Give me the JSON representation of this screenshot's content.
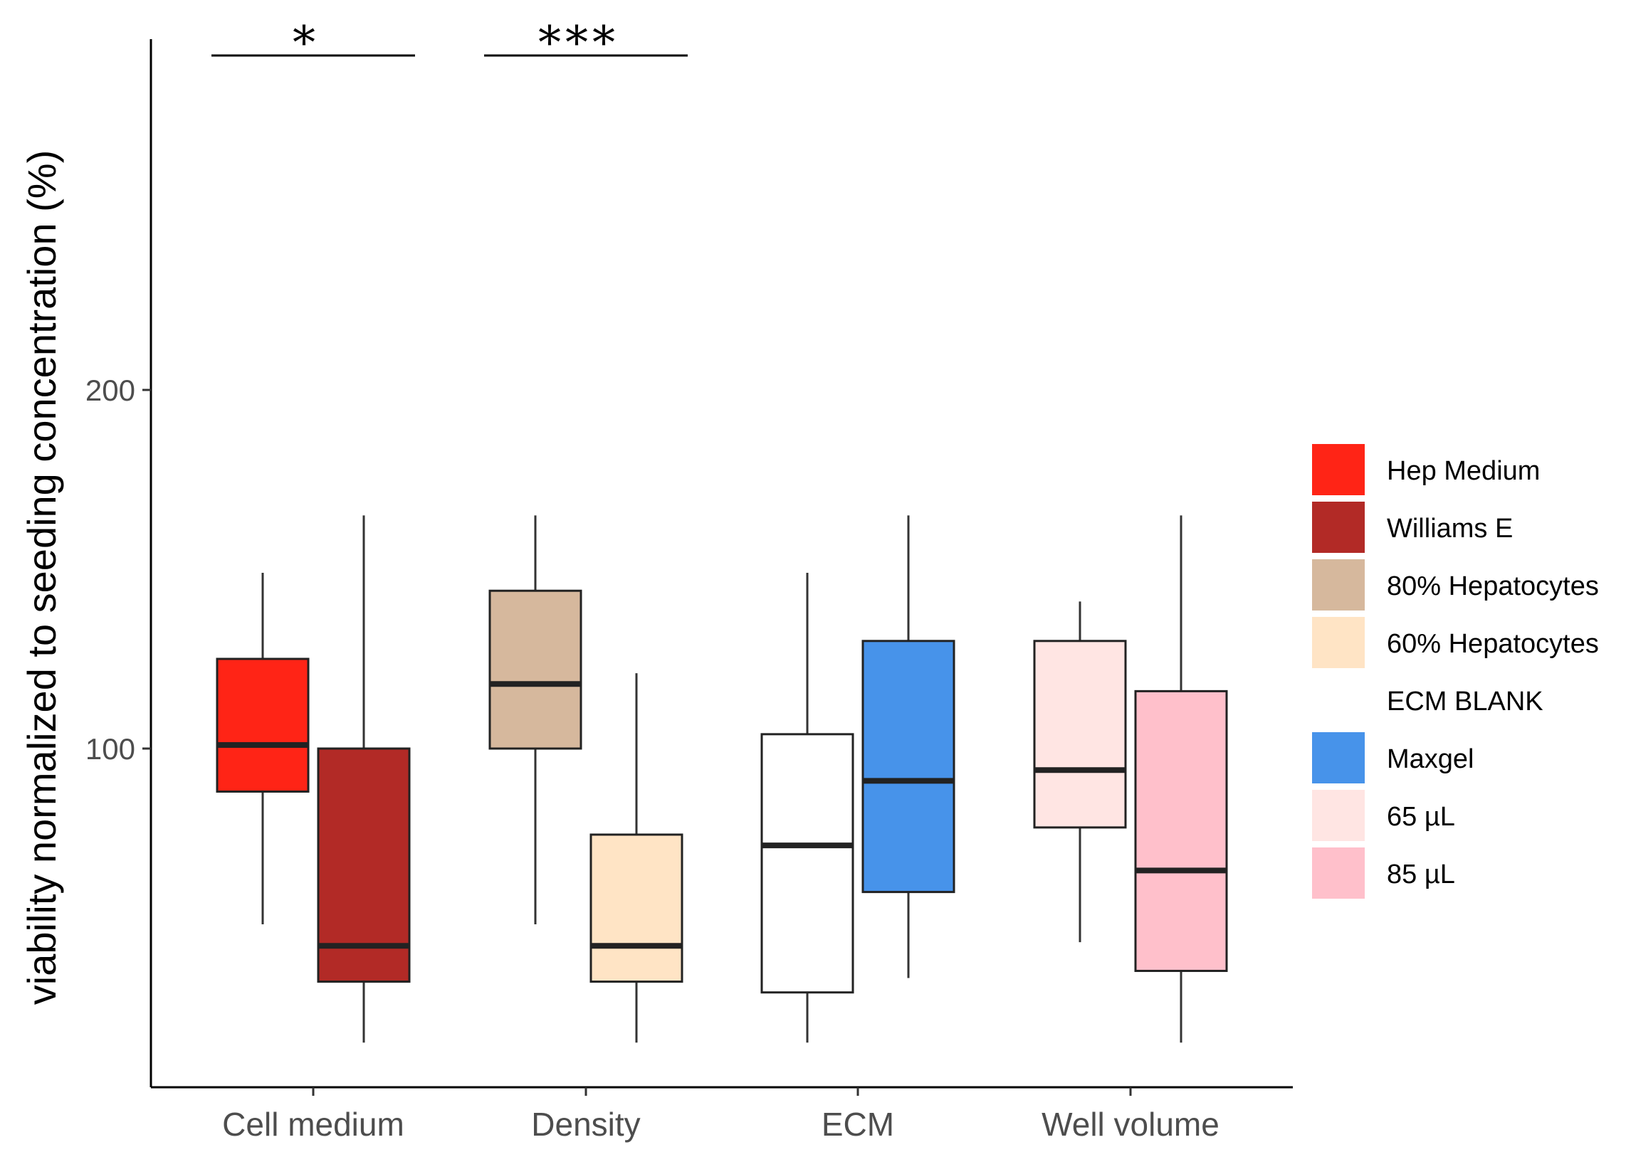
{
  "chart_data": {
    "type": "box",
    "title": "",
    "xlabel": "",
    "ylabel": "viability normalized to seeding concentration (%)",
    "ylim": [
      -95,
      200
    ],
    "yticks": [
      100,
      200
    ],
    "categories": [
      "Cell medium",
      "Density",
      "ECM",
      "Well volume"
    ],
    "boxes": [
      {
        "category": "Cell medium",
        "group": "Hep Medium",
        "color": "#FF2416",
        "whisker_low": 51,
        "q1": 88,
        "median": 101,
        "q3": 125,
        "whisker_high": 149
      },
      {
        "category": "Cell medium",
        "group": "Williams E",
        "color": "#B22A26",
        "whisker_low": 18,
        "q1": 35,
        "median": 45,
        "q3": 100,
        "whisker_high": 165
      },
      {
        "category": "Density",
        "group": "80% Hepatocytes",
        "color": "#D6B89D",
        "whisker_low": 51,
        "q1": 100,
        "median": 118,
        "q3": 144,
        "whisker_high": 165
      },
      {
        "category": "Density",
        "group": "60% Hepatocytes",
        "color": "#FFE4C5",
        "whisker_low": 18,
        "q1": 35,
        "median": 45,
        "q3": 76,
        "whisker_high": 121
      },
      {
        "category": "ECM",
        "group": "ECM BLANK",
        "color": "#FFFFFF",
        "whisker_low": 18,
        "q1": 32,
        "median": 73,
        "q3": 104,
        "whisker_high": 149
      },
      {
        "category": "ECM",
        "group": "Maxgel",
        "color": "#4793EA",
        "whisker_low": 36,
        "q1": 60,
        "median": 91,
        "q3": 130,
        "whisker_high": 165
      },
      {
        "category": "Well volume",
        "group": "65 µL",
        "color": "#FFE5E3",
        "whisker_low": 46,
        "q1": 78,
        "median": 94,
        "q3": 130,
        "whisker_high": 141
      },
      {
        "category": "Well volume",
        "group": "85 µL",
        "color": "#FFC0CB",
        "whisker_low": 18,
        "q1": 38,
        "median": 66,
        "q3": 116,
        "whisker_high": 165
      }
    ],
    "legend": {
      "position": "right",
      "entries": [
        {
          "label": "Hep Medium",
          "color": "#FF2416"
        },
        {
          "label": "Williams E",
          "color": "#B22A26"
        },
        {
          "label": "80% Hepatocytes",
          "color": "#D6B89D"
        },
        {
          "label": "60% Hepatocytes",
          "color": "#FFE4C5"
        },
        {
          "label": "ECM BLANK",
          "color": "#FFFFFF"
        },
        {
          "label": "Maxgel",
          "color": "#4793EA"
        },
        {
          "label": "65 µL",
          "color": "#FFE5E3"
        },
        {
          "label": "85 µL",
          "color": "#FFC0CB"
        }
      ]
    },
    "annotations": [
      {
        "text": "*",
        "category": "Cell medium"
      },
      {
        "text": "***",
        "category": "Density"
      }
    ],
    "grid": false
  }
}
